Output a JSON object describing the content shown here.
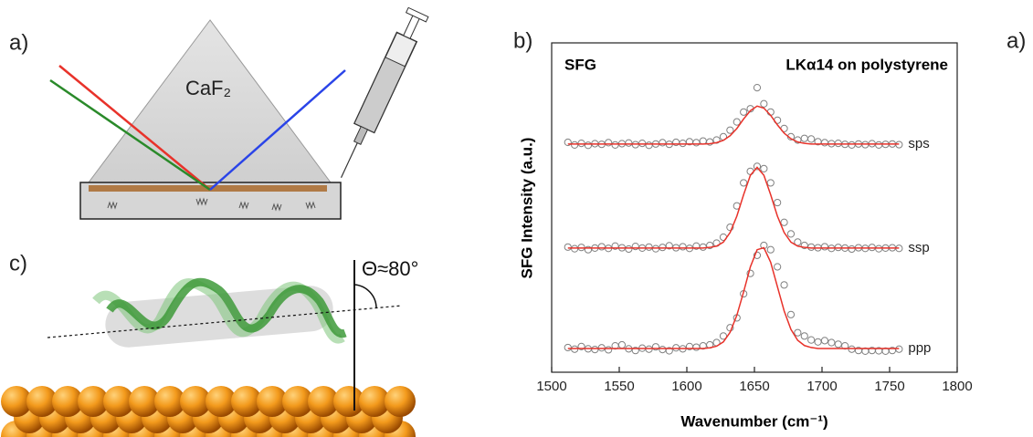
{
  "labels": {
    "panel_a": "a)",
    "prism": "CaF₂",
    "panel_c": "c)",
    "theta": "Θ≈80°",
    "panel_b": "b)",
    "panel_a_right": "a)"
  },
  "chart_data": {
    "type": "line",
    "title": "SFG",
    "subtitle": "LKα14 on polystyrene",
    "xlabel": "Wavenumber (cm⁻¹)",
    "ylabel": "SFG Intensity (a.u.)",
    "xlim": [
      1500,
      1800
    ],
    "xticks": [
      1500,
      1550,
      1600,
      1650,
      1700,
      1750,
      1800
    ],
    "ylim": [
      0,
      1
    ],
    "marker_color": "#808080",
    "x": [
      1512,
      1517,
      1522,
      1527,
      1532,
      1537,
      1542,
      1547,
      1552,
      1557,
      1562,
      1567,
      1572,
      1577,
      1582,
      1587,
      1592,
      1597,
      1602,
      1607,
      1612,
      1617,
      1622,
      1627,
      1632,
      1637,
      1642,
      1647,
      1652,
      1657,
      1662,
      1667,
      1672,
      1677,
      1682,
      1687,
      1692,
      1697,
      1702,
      1707,
      1712,
      1717,
      1722,
      1727,
      1732,
      1737,
      1742,
      1747,
      1752,
      1757
    ],
    "series": [
      {
        "name": "sps",
        "color": "#e8322a",
        "values": [
          0.693,
          0.693,
          0.693,
          0.693,
          0.693,
          0.693,
          0.693,
          0.693,
          0.693,
          0.693,
          0.693,
          0.693,
          0.693,
          0.693,
          0.693,
          0.693,
          0.693,
          0.693,
          0.693,
          0.693,
          0.693,
          0.694,
          0.697,
          0.704,
          0.718,
          0.74,
          0.769,
          0.794,
          0.808,
          0.802,
          0.78,
          0.751,
          0.726,
          0.709,
          0.699,
          0.695,
          0.693,
          0.693,
          0.693,
          0.693,
          0.693,
          0.693,
          0.693,
          0.693,
          0.693,
          0.693,
          0.693,
          0.693,
          0.693,
          0.693
        ],
        "points": [
          0.698,
          0.69,
          0.695,
          0.689,
          0.694,
          0.692,
          0.697,
          0.69,
          0.694,
          0.696,
          0.691,
          0.695,
          0.689,
          0.693,
          0.697,
          0.692,
          0.698,
          0.695,
          0.7,
          0.697,
          0.702,
          0.699,
          0.705,
          0.715,
          0.735,
          0.76,
          0.79,
          0.8,
          0.864,
          0.815,
          0.79,
          0.765,
          0.74,
          0.715,
          0.705,
          0.71,
          0.708,
          0.7,
          0.697,
          0.694,
          0.695,
          0.692,
          0.69,
          0.693,
          0.691,
          0.694,
          0.69,
          0.692,
          0.693,
          0.691
        ]
      },
      {
        "name": "ssp",
        "color": "#e8322a",
        "values": [
          0.377,
          0.377,
          0.377,
          0.377,
          0.377,
          0.377,
          0.377,
          0.377,
          0.377,
          0.377,
          0.377,
          0.377,
          0.377,
          0.377,
          0.377,
          0.377,
          0.377,
          0.377,
          0.377,
          0.377,
          0.377,
          0.379,
          0.383,
          0.395,
          0.424,
          0.474,
          0.539,
          0.598,
          0.622,
          0.598,
          0.539,
          0.474,
          0.424,
          0.395,
          0.383,
          0.379,
          0.377,
          0.377,
          0.377,
          0.377,
          0.377,
          0.377,
          0.377,
          0.377,
          0.377,
          0.377,
          0.377,
          0.377,
          0.377,
          0.377
        ],
        "points": [
          0.38,
          0.375,
          0.379,
          0.372,
          0.377,
          0.381,
          0.376,
          0.383,
          0.378,
          0.374,
          0.382,
          0.377,
          0.38,
          0.375,
          0.379,
          0.384,
          0.378,
          0.381,
          0.376,
          0.383,
          0.38,
          0.385,
          0.392,
          0.41,
          0.44,
          0.505,
          0.575,
          0.61,
          0.625,
          0.618,
          0.575,
          0.515,
          0.455,
          0.42,
          0.395,
          0.385,
          0.38,
          0.378,
          0.381,
          0.376,
          0.379,
          0.377,
          0.374,
          0.378,
          0.376,
          0.379,
          0.375,
          0.377,
          0.378,
          0.376
        ]
      },
      {
        "name": "ppp",
        "color": "#e8322a",
        "values": [
          0.072,
          0.072,
          0.072,
          0.072,
          0.072,
          0.072,
          0.072,
          0.072,
          0.072,
          0.072,
          0.072,
          0.072,
          0.072,
          0.072,
          0.072,
          0.072,
          0.072,
          0.072,
          0.072,
          0.072,
          0.072,
          0.074,
          0.079,
          0.092,
          0.121,
          0.173,
          0.244,
          0.32,
          0.372,
          0.378,
          0.334,
          0.26,
          0.186,
          0.13,
          0.097,
          0.081,
          0.075,
          0.072,
          0.072,
          0.072,
          0.072,
          0.072,
          0.072,
          0.072,
          0.072,
          0.072,
          0.072,
          0.072,
          0.072,
          0.072
        ],
        "points": [
          0.075,
          0.07,
          0.078,
          0.071,
          0.069,
          0.074,
          0.068,
          0.08,
          0.083,
          0.071,
          0.066,
          0.073,
          0.07,
          0.077,
          0.069,
          0.065,
          0.074,
          0.071,
          0.078,
          0.076,
          0.08,
          0.083,
          0.09,
          0.11,
          0.135,
          0.165,
          0.238,
          0.3,
          0.355,
          0.385,
          0.372,
          0.32,
          0.265,
          0.175,
          0.12,
          0.11,
          0.098,
          0.092,
          0.096,
          0.09,
          0.085,
          0.08,
          0.07,
          0.066,
          0.064,
          0.066,
          0.065,
          0.064,
          0.066,
          0.07
        ]
      }
    ]
  }
}
